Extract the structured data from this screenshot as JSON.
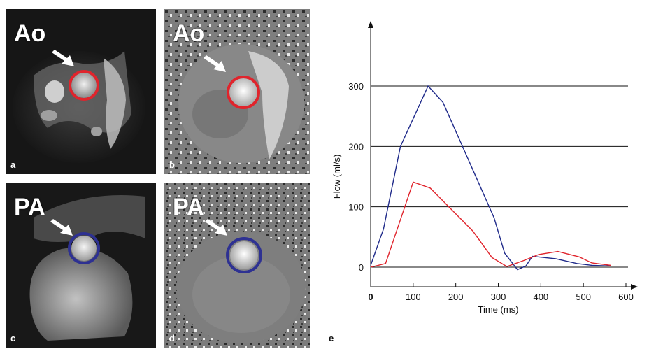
{
  "panels": [
    {
      "letter": "a",
      "vessel_label": "Ao",
      "ring_color": "#e0242c"
    },
    {
      "letter": "b",
      "vessel_label": "Ao",
      "ring_color": "#e0242c"
    },
    {
      "letter": "c",
      "vessel_label": "PA",
      "ring_color": "#2e3192"
    },
    {
      "letter": "d",
      "vessel_label": "PA",
      "ring_color": "#2e3192"
    }
  ],
  "chart_panel_letter": "e",
  "chart_data": {
    "type": "line",
    "xlabel": "Time (ms)",
    "ylabel": "Flow (ml/s)",
    "xlim": [
      0,
      600
    ],
    "ylim": [
      -30,
      400
    ],
    "xticks": [
      0,
      100,
      200,
      300,
      400,
      500,
      600
    ],
    "yticks": [
      0,
      100,
      200,
      300
    ],
    "grid": "horizontal",
    "series": [
      {
        "color": "#1f2a8a",
        "x": [
          0,
          30,
          70,
          135,
          170,
          290,
          315,
          345,
          365,
          380,
          435,
          485,
          520,
          565
        ],
        "y": [
          3,
          63,
          200,
          300,
          273,
          82,
          23,
          -4,
          2,
          18,
          14,
          6,
          3,
          2
        ]
      },
      {
        "color": "#e0242c",
        "x": [
          0,
          35,
          100,
          140,
          240,
          285,
          320,
          360,
          395,
          440,
          490,
          520,
          565
        ],
        "y": [
          0,
          6,
          141,
          131,
          60,
          16,
          1,
          11,
          21,
          26,
          17,
          7,
          3
        ]
      }
    ]
  }
}
